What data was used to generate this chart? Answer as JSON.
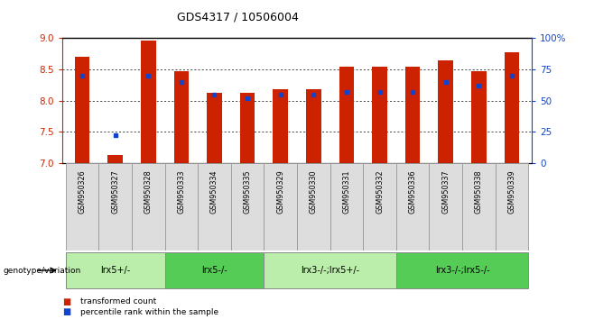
{
  "title": "GDS4317 / 10506004",
  "samples": [
    "GSM950326",
    "GSM950327",
    "GSM950328",
    "GSM950333",
    "GSM950334",
    "GSM950335",
    "GSM950329",
    "GSM950330",
    "GSM950331",
    "GSM950332",
    "GSM950336",
    "GSM950337",
    "GSM950338",
    "GSM950339"
  ],
  "red_bar_values": [
    8.7,
    7.13,
    8.97,
    8.47,
    8.12,
    8.12,
    8.18,
    8.18,
    8.55,
    8.55,
    8.55,
    8.65,
    8.47,
    8.78
  ],
  "blue_percentile": [
    70,
    22,
    70,
    65,
    55,
    52,
    55,
    55,
    57,
    57,
    57,
    65,
    62,
    70
  ],
  "ylim_left": [
    7.0,
    9.0
  ],
  "ylim_right": [
    0,
    100
  ],
  "yticks_left": [
    7.0,
    7.5,
    8.0,
    8.5,
    9.0
  ],
  "yticks_right": [
    0,
    25,
    50,
    75,
    100
  ],
  "ytick_labels_right": [
    "0",
    "25",
    "50",
    "75",
    "100%"
  ],
  "bar_color": "#cc2200",
  "dot_color": "#1144cc",
  "groups": [
    {
      "label": "lrx5+/-",
      "start": 0,
      "end": 3,
      "color": "#bbeeaa"
    },
    {
      "label": "lrx5-/-",
      "start": 3,
      "end": 6,
      "color": "#55cc55"
    },
    {
      "label": "lrx3-/-;lrx5+/-",
      "start": 6,
      "end": 10,
      "color": "#bbeeaa"
    },
    {
      "label": "lrx3-/-;lrx5-/-",
      "start": 10,
      "end": 14,
      "color": "#55cc55"
    }
  ],
  "legend_red": "transformed count",
  "legend_blue": "percentile rank within the sample",
  "left_axis_color": "#cc2200",
  "right_axis_color": "#1144cc",
  "bar_width": 0.45,
  "group_label": "genotype/variation"
}
